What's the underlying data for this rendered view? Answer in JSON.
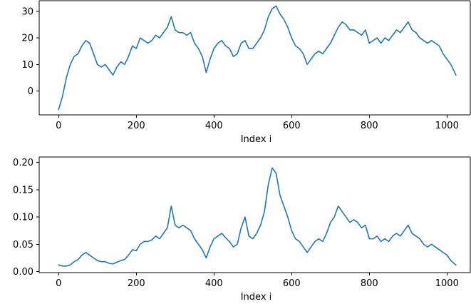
{
  "chart_data": [
    {
      "type": "line",
      "xlabel": "Index i",
      "ylabel": "",
      "xlim": [
        -50,
        1060
      ],
      "ylim": [
        -9,
        34
      ],
      "xticks": [
        0,
        200,
        400,
        600,
        800,
        1000
      ],
      "yticks": [
        0,
        10,
        20,
        30
      ],
      "ytick_labels": [
        "0",
        "10",
        "20",
        "30"
      ],
      "color": "#1f77b4",
      "grid": false,
      "series": [
        {
          "x": [
            0,
            10,
            20,
            30,
            40,
            50,
            60,
            70,
            80,
            90,
            100,
            110,
            120,
            130,
            140,
            150,
            160,
            170,
            180,
            190,
            200,
            210,
            220,
            230,
            240,
            250,
            260,
            270,
            280,
            290,
            300,
            310,
            320,
            330,
            340,
            350,
            360,
            370,
            380,
            390,
            400,
            410,
            420,
            430,
            440,
            450,
            460,
            470,
            480,
            490,
            500,
            510,
            520,
            530,
            540,
            550,
            560,
            570,
            580,
            590,
            600,
            610,
            620,
            630,
            640,
            650,
            660,
            670,
            680,
            690,
            700,
            710,
            720,
            730,
            740,
            750,
            760,
            770,
            780,
            790,
            800,
            810,
            820,
            830,
            840,
            850,
            860,
            870,
            880,
            890,
            900,
            910,
            920,
            930,
            940,
            950,
            960,
            970,
            980,
            990,
            1000,
            1010,
            1023
          ],
          "y": [
            -7,
            -2,
            5,
            10,
            13,
            14,
            17,
            19,
            18,
            14,
            10,
            9,
            10,
            8,
            6,
            9,
            11,
            10,
            13,
            17,
            16,
            20,
            19,
            18,
            19,
            21,
            20,
            22,
            24,
            28,
            23,
            22,
            22,
            21,
            22,
            18,
            16,
            13,
            7,
            12,
            16,
            18,
            19,
            17,
            16,
            13,
            14,
            18,
            19,
            16,
            16,
            18,
            20,
            23,
            28,
            31,
            32,
            29,
            27,
            24,
            20,
            17,
            16,
            14,
            10,
            12,
            14,
            15,
            14,
            16,
            18,
            21,
            24,
            26,
            25,
            23,
            23,
            22,
            21,
            23,
            18,
            19,
            20,
            18,
            20,
            19,
            21,
            23,
            22,
            24,
            26,
            23,
            22,
            20,
            19,
            18,
            19,
            18,
            17,
            14,
            12,
            10,
            6
          ]
        }
      ]
    },
    {
      "type": "line",
      "xlabel": "Index i",
      "ylabel": "",
      "xlim": [
        -50,
        1060
      ],
      "ylim": [
        -0.002,
        0.21
      ],
      "xticks": [
        0,
        200,
        400,
        600,
        800,
        1000
      ],
      "yticks": [
        0.0,
        0.05,
        0.1,
        0.15,
        0.2
      ],
      "ytick_labels": [
        "0.00",
        "0.05",
        "0.10",
        "0.15",
        "0.20"
      ],
      "color": "#1f77b4",
      "grid": false,
      "series": [
        {
          "x": [
            0,
            10,
            20,
            30,
            40,
            50,
            60,
            70,
            80,
            90,
            100,
            110,
            120,
            130,
            140,
            150,
            160,
            170,
            180,
            190,
            200,
            210,
            220,
            230,
            240,
            250,
            260,
            270,
            280,
            290,
            300,
            310,
            320,
            330,
            340,
            350,
            360,
            370,
            380,
            390,
            400,
            410,
            420,
            430,
            440,
            450,
            460,
            470,
            480,
            490,
            500,
            510,
            520,
            530,
            540,
            550,
            560,
            570,
            580,
            590,
            600,
            610,
            620,
            630,
            640,
            650,
            660,
            670,
            680,
            690,
            700,
            710,
            720,
            730,
            740,
            750,
            760,
            770,
            780,
            790,
            800,
            810,
            820,
            830,
            840,
            850,
            860,
            870,
            880,
            890,
            900,
            910,
            920,
            930,
            940,
            950,
            960,
            970,
            980,
            990,
            1000,
            1010,
            1023
          ],
          "y": [
            0.012,
            0.01,
            0.01,
            0.012,
            0.018,
            0.022,
            0.03,
            0.035,
            0.03,
            0.025,
            0.02,
            0.018,
            0.018,
            0.015,
            0.014,
            0.017,
            0.02,
            0.022,
            0.03,
            0.04,
            0.038,
            0.05,
            0.055,
            0.055,
            0.058,
            0.065,
            0.06,
            0.07,
            0.08,
            0.12,
            0.085,
            0.08,
            0.085,
            0.08,
            0.075,
            0.06,
            0.05,
            0.04,
            0.025,
            0.045,
            0.06,
            0.065,
            0.07,
            0.062,
            0.055,
            0.045,
            0.05,
            0.08,
            0.1,
            0.065,
            0.06,
            0.07,
            0.085,
            0.11,
            0.16,
            0.19,
            0.18,
            0.14,
            0.12,
            0.1,
            0.075,
            0.06,
            0.055,
            0.045,
            0.035,
            0.045,
            0.055,
            0.06,
            0.055,
            0.07,
            0.09,
            0.1,
            0.12,
            0.11,
            0.1,
            0.09,
            0.095,
            0.09,
            0.08,
            0.085,
            0.06,
            0.06,
            0.065,
            0.055,
            0.06,
            0.055,
            0.065,
            0.07,
            0.065,
            0.075,
            0.085,
            0.07,
            0.065,
            0.06,
            0.05,
            0.045,
            0.05,
            0.045,
            0.04,
            0.035,
            0.03,
            0.02,
            0.012
          ]
        }
      ]
    }
  ]
}
